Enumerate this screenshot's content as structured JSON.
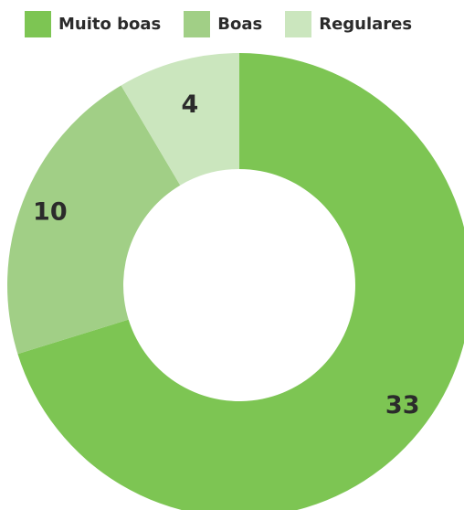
{
  "chart_data": {
    "type": "pie",
    "donut": true,
    "legend_position": "top",
    "categories": [
      "Muito boas",
      "Boas",
      "Regulares"
    ],
    "values": [
      33,
      10,
      4
    ],
    "colors": [
      "#7dc553",
      "#a1cf86",
      "#cbe6be"
    ],
    "labels": [
      "33",
      "10",
      "4"
    ]
  }
}
